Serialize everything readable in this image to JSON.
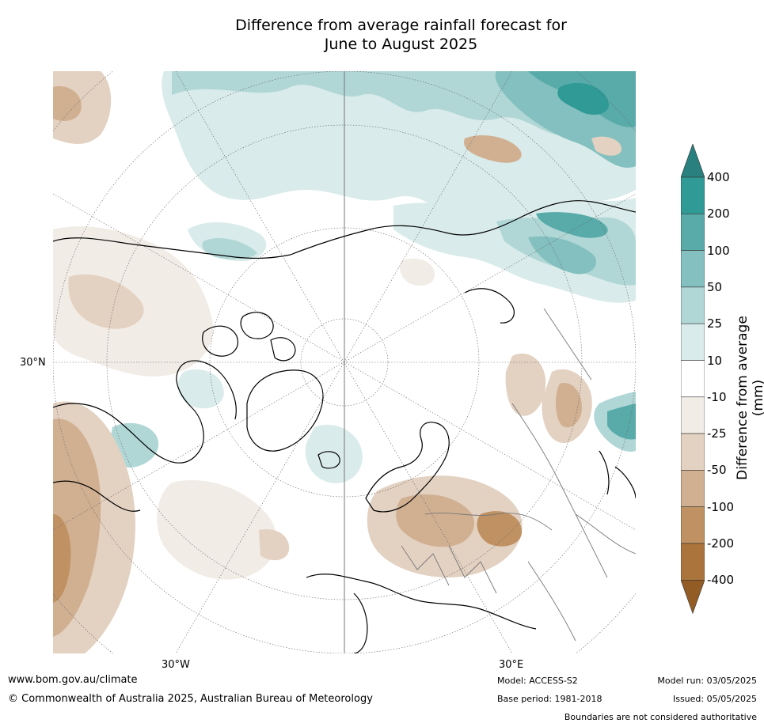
{
  "title": {
    "line1": "Difference from average rainfall forecast for",
    "line2": "June to August 2025"
  },
  "map": {
    "projection": "north-polar-stereographic",
    "labels": {
      "lat30": "30°N",
      "lon30w": "30°W",
      "lon30e": "30°E"
    },
    "colors": {
      "water_bg": "#ffffff",
      "coast": "#000000",
      "borders": "#777777",
      "graticule": "#666666"
    }
  },
  "colorbar": {
    "title": "Difference from average (mm)",
    "ticks": [
      "400",
      "200",
      "100",
      "50",
      "25",
      "10",
      "-10",
      "-25",
      "-50",
      "-100",
      "-200",
      "-400"
    ],
    "colors": [
      "#2a7f7f",
      "#2f9a96",
      "#58aba9",
      "#83c0bf",
      "#b0d7d6",
      "#d9ebea",
      "#ffffff",
      "#f1ece6",
      "#e3d1c1",
      "#d1b092",
      "#c09163",
      "#ac743d",
      "#935c24"
    ]
  },
  "footer": {
    "url": "www.bom.gov.au/climate",
    "copyright": "© Commonwealth of Australia 2025, Australian Bureau of Meteorology",
    "model": "Model: ACCESS-S2",
    "base_period": "Base period: 1981-2018",
    "model_run": "Model run: 03/05/2025",
    "issued": "Issued: 05/05/2025",
    "boundaries": "Boundaries are not considered authoritative"
  }
}
